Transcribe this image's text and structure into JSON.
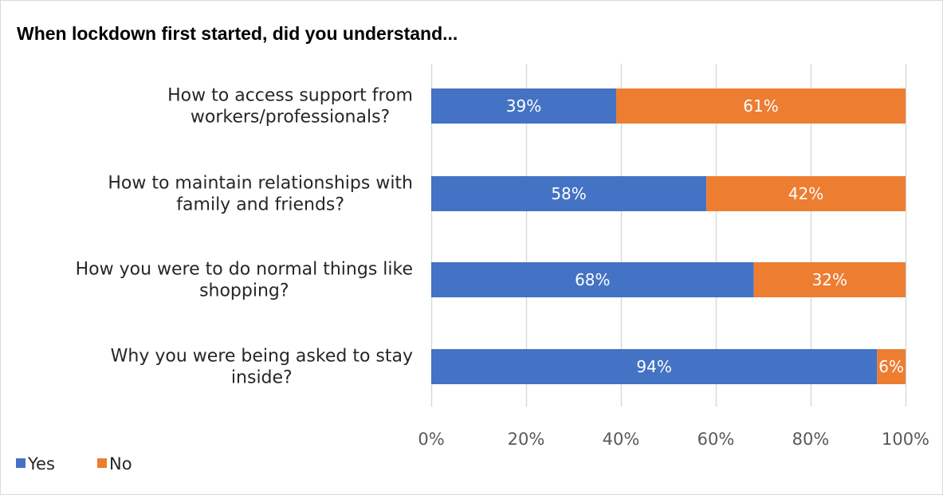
{
  "chart_data": {
    "type": "bar",
    "orientation": "horizontal",
    "stacked": true,
    "title": "When lockdown first started, did you understand...",
    "categories": [
      "How to access support from workers/professionals?",
      "How to maintain relationships with family and friends?",
      "How you were to do normal things like shopping?",
      "Why you were being asked to stay inside?"
    ],
    "category_lines": [
      [
        "How to access support from",
        "workers/professionals?"
      ],
      [
        "How to maintain relationships with",
        "family and friends?"
      ],
      [
        "How you were to do normal things like",
        "shopping?"
      ],
      [
        "Why you were being asked to stay",
        "inside?"
      ]
    ],
    "series": [
      {
        "name": "Yes",
        "values": [
          39,
          58,
          68,
          94
        ],
        "labels": [
          "39%",
          "58%",
          "68%",
          "94%"
        ],
        "color": "#4472c4"
      },
      {
        "name": "No",
        "values": [
          61,
          42,
          32,
          6
        ],
        "labels": [
          "61%",
          "42%",
          "32%",
          "6%"
        ],
        "color": "#ed7d31"
      }
    ],
    "xlim": [
      0,
      100
    ],
    "xticks": [
      0,
      20,
      40,
      60,
      80,
      100
    ],
    "xtick_labels": [
      "0%",
      "20%",
      "40%",
      "60%",
      "80%",
      "100%"
    ],
    "grid": true,
    "legend_position": "bottom-left",
    "gridline_color": "#d9d9d9"
  }
}
